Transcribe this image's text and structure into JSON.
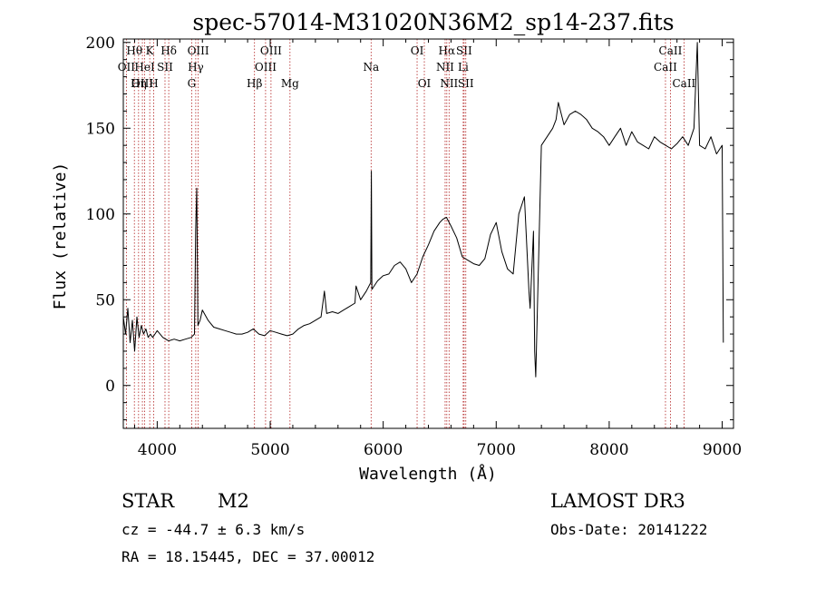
{
  "chart_data": {
    "type": "line",
    "title": "spec-57014-M31020N36M2_sp14-237.fits",
    "xlabel": "Wavelength (Å)",
    "ylabel": "Flux (relative)",
    "xlim": [
      3700,
      9100
    ],
    "ylim": [
      -25,
      202
    ],
    "xticks": [
      4000,
      5000,
      6000,
      7000,
      8000,
      9000
    ],
    "yticks": [
      0,
      50,
      100,
      150,
      200
    ],
    "grid": false,
    "series": [
      {
        "x": [
          3700,
          3720,
          3740,
          3760,
          3780,
          3800,
          3820,
          3840,
          3860,
          3880,
          3900,
          3920,
          3940,
          3960,
          3980,
          4000,
          4050,
          4100,
          4150,
          4200,
          4250,
          4300,
          4330,
          4340,
          4350,
          4360,
          4380,
          4400,
          4450,
          4500,
          4550,
          4600,
          4650,
          4700,
          4750,
          4800,
          4850,
          4900,
          4950,
          5000,
          5050,
          5100,
          5150,
          5200,
          5250,
          5300,
          5350,
          5400,
          5450,
          5480,
          5500,
          5550,
          5600,
          5650,
          5700,
          5750,
          5760,
          5800,
          5850,
          5890,
          5895,
          5900,
          5950,
          6000,
          6050,
          6100,
          6150,
          6200,
          6250,
          6300,
          6350,
          6400,
          6450,
          6500,
          6530,
          6560,
          6600,
          6650,
          6700,
          6750,
          6800,
          6850,
          6900,
          6950,
          7000,
          7050,
          7100,
          7150,
          7200,
          7250,
          7290,
          7300,
          7330,
          7340,
          7350,
          7400,
          7450,
          7500,
          7530,
          7550,
          7600,
          7650,
          7700,
          7750,
          7800,
          7850,
          7900,
          7950,
          8000,
          8050,
          8100,
          8150,
          8200,
          8250,
          8300,
          8350,
          8400,
          8450,
          8500,
          8550,
          8600,
          8650,
          8700,
          8750,
          8780,
          8800,
          8850,
          8900,
          8950,
          9000,
          9010
        ],
        "y": [
          40,
          30,
          45,
          25,
          38,
          20,
          40,
          28,
          35,
          30,
          33,
          28,
          30,
          28,
          30,
          32,
          28,
          26,
          27,
          26,
          27,
          28,
          30,
          90,
          115,
          35,
          38,
          44,
          38,
          34,
          33,
          32,
          31,
          30,
          30,
          31,
          33,
          30,
          29,
          32,
          31,
          30,
          29,
          30,
          33,
          35,
          36,
          38,
          40,
          55,
          42,
          43,
          42,
          44,
          46,
          48,
          58,
          50,
          55,
          60,
          125,
          56,
          61,
          64,
          65,
          70,
          72,
          68,
          60,
          65,
          75,
          82,
          90,
          95,
          97,
          98,
          93,
          86,
          75,
          73,
          71,
          70,
          74,
          88,
          95,
          78,
          68,
          65,
          100,
          110,
          55,
          45,
          90,
          20,
          5,
          140,
          145,
          150,
          155,
          165,
          152,
          158,
          160,
          158,
          155,
          150,
          148,
          145,
          140,
          145,
          150,
          140,
          148,
          142,
          140,
          138,
          145,
          142,
          140,
          138,
          141,
          145,
          140,
          150,
          200,
          140,
          138,
          145,
          135,
          140,
          25
        ]
      }
    ],
    "line_markers": [
      {
        "label": "Hθ",
        "x": 3798,
        "row": 1
      },
      {
        "label": "OII",
        "x": 3727,
        "row": 2
      },
      {
        "label": "OIII",
        "x": 3869,
        "row": 3
      },
      {
        "label": "K",
        "x": 3934,
        "row": 1
      },
      {
        "label": "HeI",
        "x": 3889,
        "row": 2
      },
      {
        "label": "Hη",
        "x": 3835,
        "row": 3
      },
      {
        "label": "Hδ",
        "x": 4102,
        "row": 1
      },
      {
        "label": "SII",
        "x": 4069,
        "row": 2
      },
      {
        "label": "H",
        "x": 3969,
        "row": 3
      },
      {
        "label": "OIII",
        "x": 4363,
        "row": 1
      },
      {
        "label": "Hγ",
        "x": 4341,
        "row": 2
      },
      {
        "label": "G",
        "x": 4305,
        "row": 3
      },
      {
        "label": "OIII",
        "x": 5007,
        "row": 1
      },
      {
        "label": "OIII",
        "x": 4959,
        "row": 2
      },
      {
        "label": "Hβ",
        "x": 4861,
        "row": 3
      },
      {
        "label": "Mg",
        "x": 5175,
        "row": 3
      },
      {
        "label": "Na",
        "x": 5893,
        "row": 2
      },
      {
        "label": "OI",
        "x": 6300,
        "row": 1
      },
      {
        "label": "OI",
        "x": 6364,
        "row": 3
      },
      {
        "label": "Hα",
        "x": 6563,
        "row": 1
      },
      {
        "label": "SII",
        "x": 6716,
        "row": 1
      },
      {
        "label": "NII",
        "x": 6548,
        "row": 2
      },
      {
        "label": "Li",
        "x": 6708,
        "row": 2
      },
      {
        "label": "NII",
        "x": 6583,
        "row": 3
      },
      {
        "label": "SII",
        "x": 6731,
        "row": 3
      },
      {
        "label": "CaII",
        "x": 8542,
        "row": 1
      },
      {
        "label": "CaII",
        "x": 8498,
        "row": 2
      },
      {
        "label": "CaII",
        "x": 8662,
        "row": 3
      }
    ]
  },
  "info": {
    "class": "STAR",
    "subclass": "M2",
    "survey": "LAMOST DR3",
    "cz": "cz = -44.7 ± 6.3 km/s",
    "obs_date": "Obs-Date: 20141222",
    "coords": "RA =  18.15445, DEC =  37.00012"
  },
  "colors": {
    "spectrum": "#000000",
    "marker_line": "#b22222",
    "axis": "#000000",
    "background": "#ffffff"
  }
}
